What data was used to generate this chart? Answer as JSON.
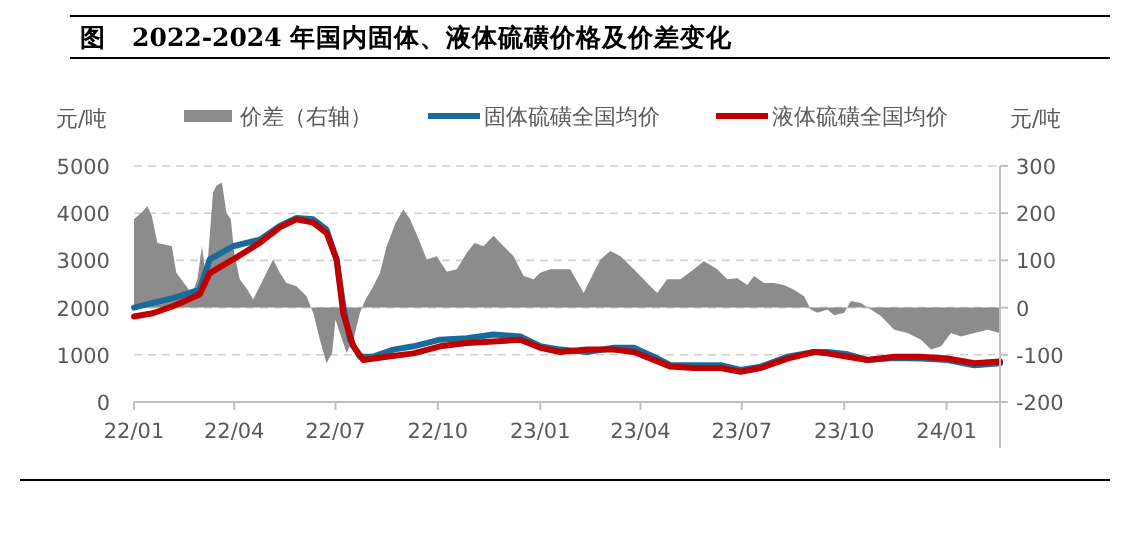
{
  "chart_data": {
    "type": "line",
    "title": "图   2022-2024 年国内固体、液体硫磺价格及价差变化",
    "ylabel": "元/吨",
    "y2label": "元/吨",
    "xlim": [
      "2022-01-01",
      "2024-02-18"
    ],
    "xticks": [
      {
        "value": "2022-01-01",
        "label": "22/01"
      },
      {
        "value": "2022-04-01",
        "label": "22/04"
      },
      {
        "value": "2022-07-01",
        "label": "22/07"
      },
      {
        "value": "2022-10-01",
        "label": "22/10"
      },
      {
        "value": "2023-01-01",
        "label": "23/01"
      },
      {
        "value": "2023-04-01",
        "label": "23/04"
      },
      {
        "value": "2023-07-01",
        "label": "23/07"
      },
      {
        "value": "2023-10-01",
        "label": "23/10"
      },
      {
        "value": "2024-01-01",
        "label": "24/01"
      }
    ],
    "ylim": [
      0,
      5000
    ],
    "yticks": [
      0,
      1000,
      2000,
      3000,
      4000,
      5000
    ],
    "y2lim": [
      -200,
      300
    ],
    "y2ticks": [
      -200,
      -100,
      0,
      100,
      200,
      300
    ],
    "grid": "y",
    "legend": "top",
    "series": [
      {
        "name": "价差（右轴）",
        "type": "area",
        "axis": "y2",
        "color": "#8c8c8c",
        "x": [
          "2022-01-01",
          "2022-01-09",
          "2022-01-13",
          "2022-01-17",
          "2022-01-22",
          "2022-02-04",
          "2022-02-08",
          "2022-02-17",
          "2022-02-22",
          "2022-02-27",
          "2022-03-03",
          "2022-03-07",
          "2022-03-13",
          "2022-03-16",
          "2022-03-21",
          "2022-03-25",
          "2022-03-29",
          "2022-04-01",
          "2022-04-06",
          "2022-04-13",
          "2022-04-18",
          "2022-04-24",
          "2022-04-30",
          "2022-05-06",
          "2022-05-12",
          "2022-05-18",
          "2022-05-27",
          "2022-06-05",
          "2022-06-11",
          "2022-06-17",
          "2022-06-23",
          "2022-06-28",
          "2022-07-01",
          "2022-07-05",
          "2022-07-11",
          "2022-07-17",
          "2022-07-23",
          "2022-07-28",
          "2022-08-04",
          "2022-08-10",
          "2022-08-16",
          "2022-08-24",
          "2022-08-31",
          "2022-09-06",
          "2022-09-14",
          "2022-09-21",
          "2022-09-30",
          "2022-10-09",
          "2022-10-18",
          "2022-10-27",
          "2022-11-03",
          "2022-11-11",
          "2022-11-20",
          "2022-11-29",
          "2022-12-08",
          "2022-12-17",
          "2022-12-26",
          "2023-01-01",
          "2023-01-10",
          "2023-01-16",
          "2023-01-28",
          "2023-02-09",
          "2023-02-15",
          "2023-02-24",
          "2023-03-05",
          "2023-03-14",
          "2023-03-26",
          "2023-04-07",
          "2023-04-16",
          "2023-04-25",
          "2023-05-07",
          "2023-05-19",
          "2023-05-28",
          "2023-06-09",
          "2023-06-18",
          "2023-06-27",
          "2023-07-06",
          "2023-07-12",
          "2023-07-21",
          "2023-07-30",
          "2023-08-08",
          "2023-08-17",
          "2023-08-26",
          "2023-09-01",
          "2023-09-07",
          "2023-09-16",
          "2023-09-22",
          "2023-10-01",
          "2023-10-07",
          "2023-10-16",
          "2023-10-25",
          "2023-11-03",
          "2023-11-15",
          "2023-11-27",
          "2023-12-09",
          "2023-12-18",
          "2023-12-27",
          "2024-01-05",
          "2024-01-14",
          "2024-01-26",
          "2024-02-07",
          "2024-02-18"
        ],
        "values": [
          187,
          204,
          215,
          194,
          137,
          130,
          74,
          45,
          28,
          60,
          130,
          60,
          244,
          258,
          265,
          201,
          187,
          116,
          60,
          38,
          17,
          45,
          74,
          102,
          74,
          52,
          45,
          24,
          -11,
          -68,
          -118,
          -96,
          -25,
          -54,
          -96,
          -68,
          -11,
          17,
          45,
          74,
          130,
          180,
          208,
          187,
          144,
          102,
          109,
          76,
          81,
          116,
          137,
          130,
          152,
          130,
          109,
          67,
          60,
          74,
          81,
          81,
          81,
          31,
          60,
          102,
          120,
          109,
          81,
          52,
          31,
          60,
          60,
          81,
          98,
          81,
          60,
          62,
          48,
          67,
          52,
          52,
          48,
          38,
          24,
          -4,
          -11,
          -4,
          -16,
          -11,
          14,
          10,
          -4,
          -18,
          -47,
          -54,
          -68,
          -89,
          -82,
          -54,
          -61,
          -54,
          -47,
          -54
        ]
      },
      {
        "name": "固体硫磺全国均价",
        "type": "line",
        "color": "#1a6a9c",
        "x": [
          "2022-01-01",
          "2022-01-18",
          "2022-02-05",
          "2022-03-01",
          "2022-03-10",
          "2022-03-31",
          "2022-04-24",
          "2022-05-12",
          "2022-05-27",
          "2022-06-11",
          "2022-06-23",
          "2022-07-02",
          "2022-07-08",
          "2022-07-14",
          "2022-07-23",
          "2022-08-04",
          "2022-08-22",
          "2022-09-09",
          "2022-10-03",
          "2022-10-27",
          "2022-11-20",
          "2022-12-14",
          "2023-01-01",
          "2023-01-19",
          "2023-02-12",
          "2023-03-08",
          "2023-03-26",
          "2023-04-13",
          "2023-04-28",
          "2023-05-19",
          "2023-06-12",
          "2023-06-30",
          "2023-07-18",
          "2023-08-11",
          "2023-09-04",
          "2023-09-16",
          "2023-10-04",
          "2023-10-22",
          "2023-11-15",
          "2023-12-09",
          "2024-01-02",
          "2024-01-26",
          "2024-02-18"
        ],
        "values": [
          2000,
          2100,
          2200,
          2380,
          3020,
          3300,
          3440,
          3730,
          3900,
          3870,
          3650,
          3020,
          2030,
          1320,
          960,
          960,
          1110,
          1180,
          1320,
          1350,
          1430,
          1390,
          1180,
          1110,
          1060,
          1150,
          1150,
          960,
          780,
          780,
          780,
          680,
          750,
          960,
          1060,
          1060,
          1010,
          890,
          930,
          920,
          890,
          780,
          820
        ]
      },
      {
        "name": "液体硫磺全国均价",
        "type": "line",
        "color": "#c00000",
        "x": [
          "2022-01-01",
          "2022-01-18",
          "2022-02-05",
          "2022-03-01",
          "2022-03-10",
          "2022-03-31",
          "2022-04-24",
          "2022-05-12",
          "2022-05-27",
          "2022-06-11",
          "2022-06-23",
          "2022-07-02",
          "2022-07-08",
          "2022-07-17",
          "2022-07-26",
          "2022-08-16",
          "2022-09-09",
          "2022-10-03",
          "2022-10-27",
          "2022-11-20",
          "2022-12-14",
          "2023-01-01",
          "2023-01-19",
          "2023-02-12",
          "2023-03-08",
          "2023-03-26",
          "2023-04-13",
          "2023-04-28",
          "2023-05-19",
          "2023-06-12",
          "2023-06-30",
          "2023-07-18",
          "2023-08-11",
          "2023-09-04",
          "2023-09-16",
          "2023-10-04",
          "2023-10-22",
          "2023-11-15",
          "2023-12-09",
          "2024-01-02",
          "2024-01-26",
          "2024-02-18"
        ],
        "values": [
          1810,
          1880,
          2030,
          2280,
          2730,
          3020,
          3370,
          3700,
          3870,
          3800,
          3580,
          3020,
          1880,
          1180,
          890,
          960,
          1030,
          1180,
          1250,
          1280,
          1320,
          1150,
          1060,
          1110,
          1110,
          1060,
          890,
          750,
          720,
          720,
          640,
          720,
          920,
          1060,
          1030,
          960,
          890,
          960,
          960,
          920,
          820,
          860
        ]
      }
    ]
  }
}
